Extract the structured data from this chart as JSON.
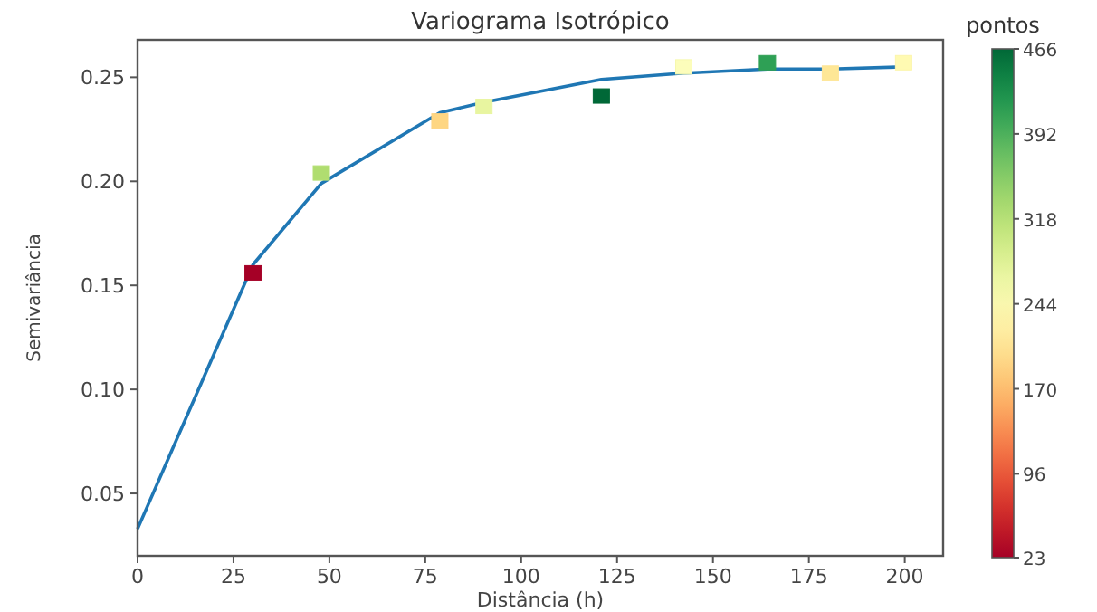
{
  "chart_data": {
    "type": "scatter",
    "title": "Variograma Isotrópico",
    "xlabel": "Distância (h)",
    "ylabel": "Semivariância",
    "clabel": "pontos",
    "xlim": [
      0,
      210
    ],
    "xticks": [
      0,
      25,
      50,
      75,
      100,
      125,
      150,
      175,
      200
    ],
    "ylim": [
      0.02,
      0.268
    ],
    "yticks": [
      {
        "value": 0.05,
        "label": "0.05"
      },
      {
        "value": 0.1,
        "label": "0.10"
      },
      {
        "value": 0.15,
        "label": "0.15"
      },
      {
        "value": 0.2,
        "label": "0.20"
      },
      {
        "value": 0.25,
        "label": "0.25"
      }
    ],
    "clim": [
      23,
      466
    ],
    "cticks": [
      23,
      96,
      170,
      244,
      318,
      392,
      466
    ],
    "grid": false,
    "series": [
      {
        "type": "line",
        "color": "#1f77b4",
        "marker": "none",
        "line_style": "solid",
        "x": [
          0,
          30.1,
          47.9,
          78.8,
          90.3,
          120.9,
          142.4,
          164.2,
          180.6,
          199.7
        ],
        "values": [
          0.033,
          0.16,
          0.199,
          0.233,
          0.238,
          0.249,
          0.252,
          0.254,
          0.254,
          0.255
        ]
      },
      {
        "marker": "square",
        "colors": [
          "#a50026",
          "#b0dd70",
          "#fed682",
          "#e8f5a0",
          "#006837",
          "#fcfdbb",
          "#2ea055",
          "#fee796",
          "#fffab2"
        ],
        "x": [
          30.1,
          47.9,
          78.8,
          90.3,
          120.9,
          142.4,
          164.2,
          180.6,
          199.7
        ],
        "values": [
          0.156,
          0.204,
          0.229,
          0.236,
          0.241,
          0.255,
          0.257,
          0.252,
          0.257
        ],
        "cvalues": [
          23,
          320,
          190,
          270,
          466,
          250,
          410,
          210,
          235
        ]
      }
    ]
  }
}
